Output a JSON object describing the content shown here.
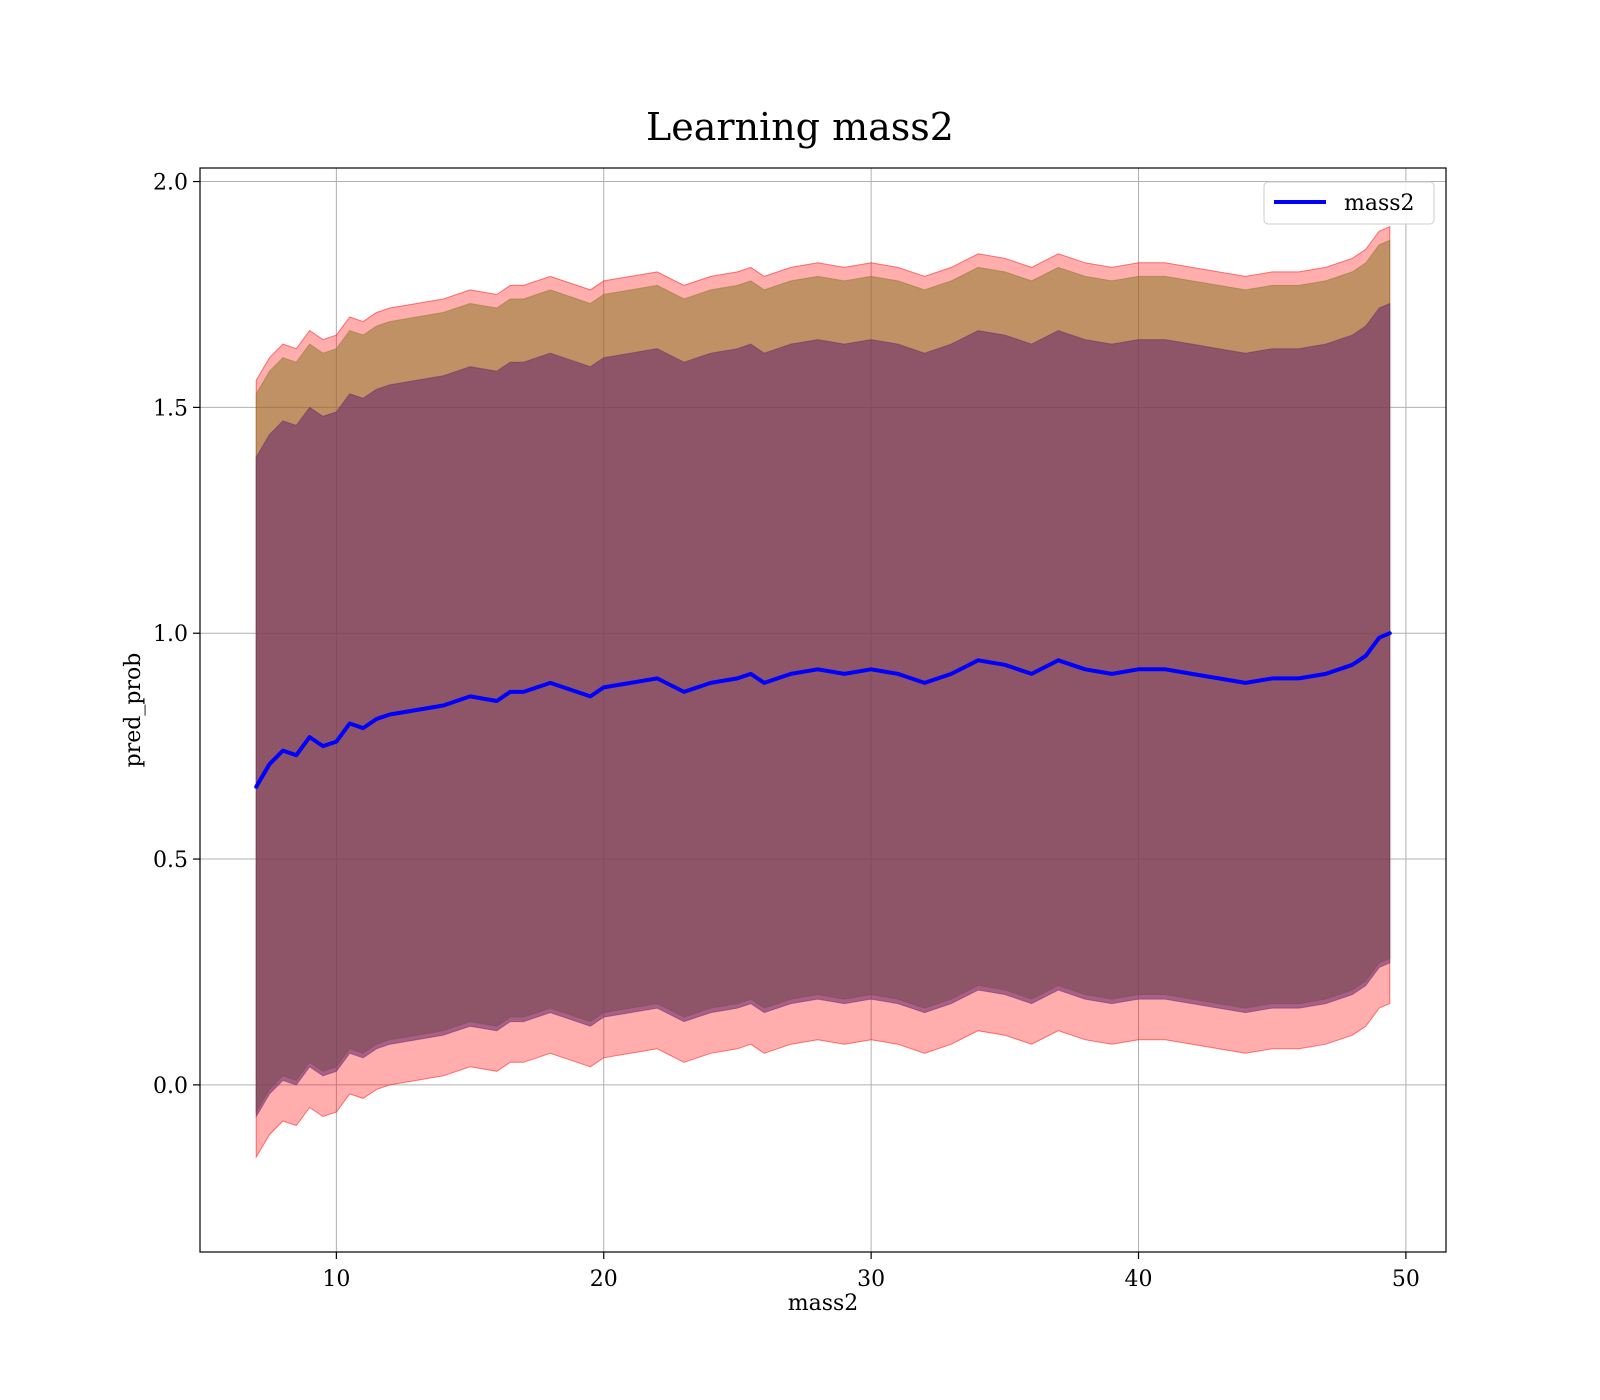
{
  "chart_data": {
    "type": "line",
    "title": "Learning mass2",
    "xlabel": "mass2",
    "ylabel": "pred_prob",
    "xlim": [
      4.9,
      51.5
    ],
    "ylim": [
      -0.37,
      2.03
    ],
    "xticks": [
      10,
      20,
      30,
      40,
      50
    ],
    "yticks": [
      0.0,
      0.5,
      1.0,
      1.5,
      2.0
    ],
    "xtick_labels": [
      "10",
      "20",
      "30",
      "40",
      "50"
    ],
    "ytick_labels": [
      "0.0",
      "0.5",
      "1.0",
      "1.5",
      "2.0"
    ],
    "grid": true,
    "legend": {
      "position": "top-right",
      "entries": [
        "mass2"
      ]
    },
    "colors": {
      "line": "#0000ff",
      "band_outer": "#ff0000",
      "band_middle": "#8b7a2a",
      "band_inner": "#6b2a6a",
      "grid": "#b0b0b0"
    },
    "x": [
      7.0,
      7.5,
      8.0,
      8.5,
      9.0,
      9.5,
      10.0,
      10.5,
      11.0,
      11.5,
      12.0,
      13.0,
      14.0,
      15.0,
      16.0,
      16.5,
      17.0,
      18.0,
      19.0,
      19.5,
      20.0,
      21.0,
      22.0,
      23.0,
      24.0,
      25.0,
      25.5,
      26.0,
      27.0,
      28.0,
      29.0,
      30.0,
      31.0,
      32.0,
      33.0,
      34.0,
      35.0,
      36.0,
      37.0,
      38.0,
      39.0,
      40.0,
      41.0,
      42.0,
      43.0,
      44.0,
      45.0,
      46.0,
      47.0,
      48.0,
      48.5,
      49.0,
      49.4
    ],
    "series": [
      {
        "name": "mass2",
        "values": [
          0.66,
          0.71,
          0.74,
          0.73,
          0.77,
          0.75,
          0.76,
          0.8,
          0.79,
          0.81,
          0.82,
          0.83,
          0.84,
          0.86,
          0.85,
          0.87,
          0.87,
          0.89,
          0.87,
          0.86,
          0.88,
          0.89,
          0.9,
          0.87,
          0.89,
          0.9,
          0.91,
          0.89,
          0.91,
          0.92,
          0.91,
          0.92,
          0.91,
          0.89,
          0.91,
          0.94,
          0.93,
          0.91,
          0.94,
          0.92,
          0.91,
          0.92,
          0.92,
          0.91,
          0.9,
          0.89,
          0.9,
          0.9,
          0.91,
          0.93,
          0.95,
          0.99,
          1.0
        ]
      }
    ],
    "bands": [
      {
        "level": "outer",
        "lower_offset": -0.82,
        "upper_offset": 0.9
      },
      {
        "level": "middle",
        "lower_offset": -0.72,
        "upper_offset": 0.87
      },
      {
        "level": "inner",
        "lower_offset": -0.73,
        "upper_offset": 0.73
      }
    ]
  }
}
